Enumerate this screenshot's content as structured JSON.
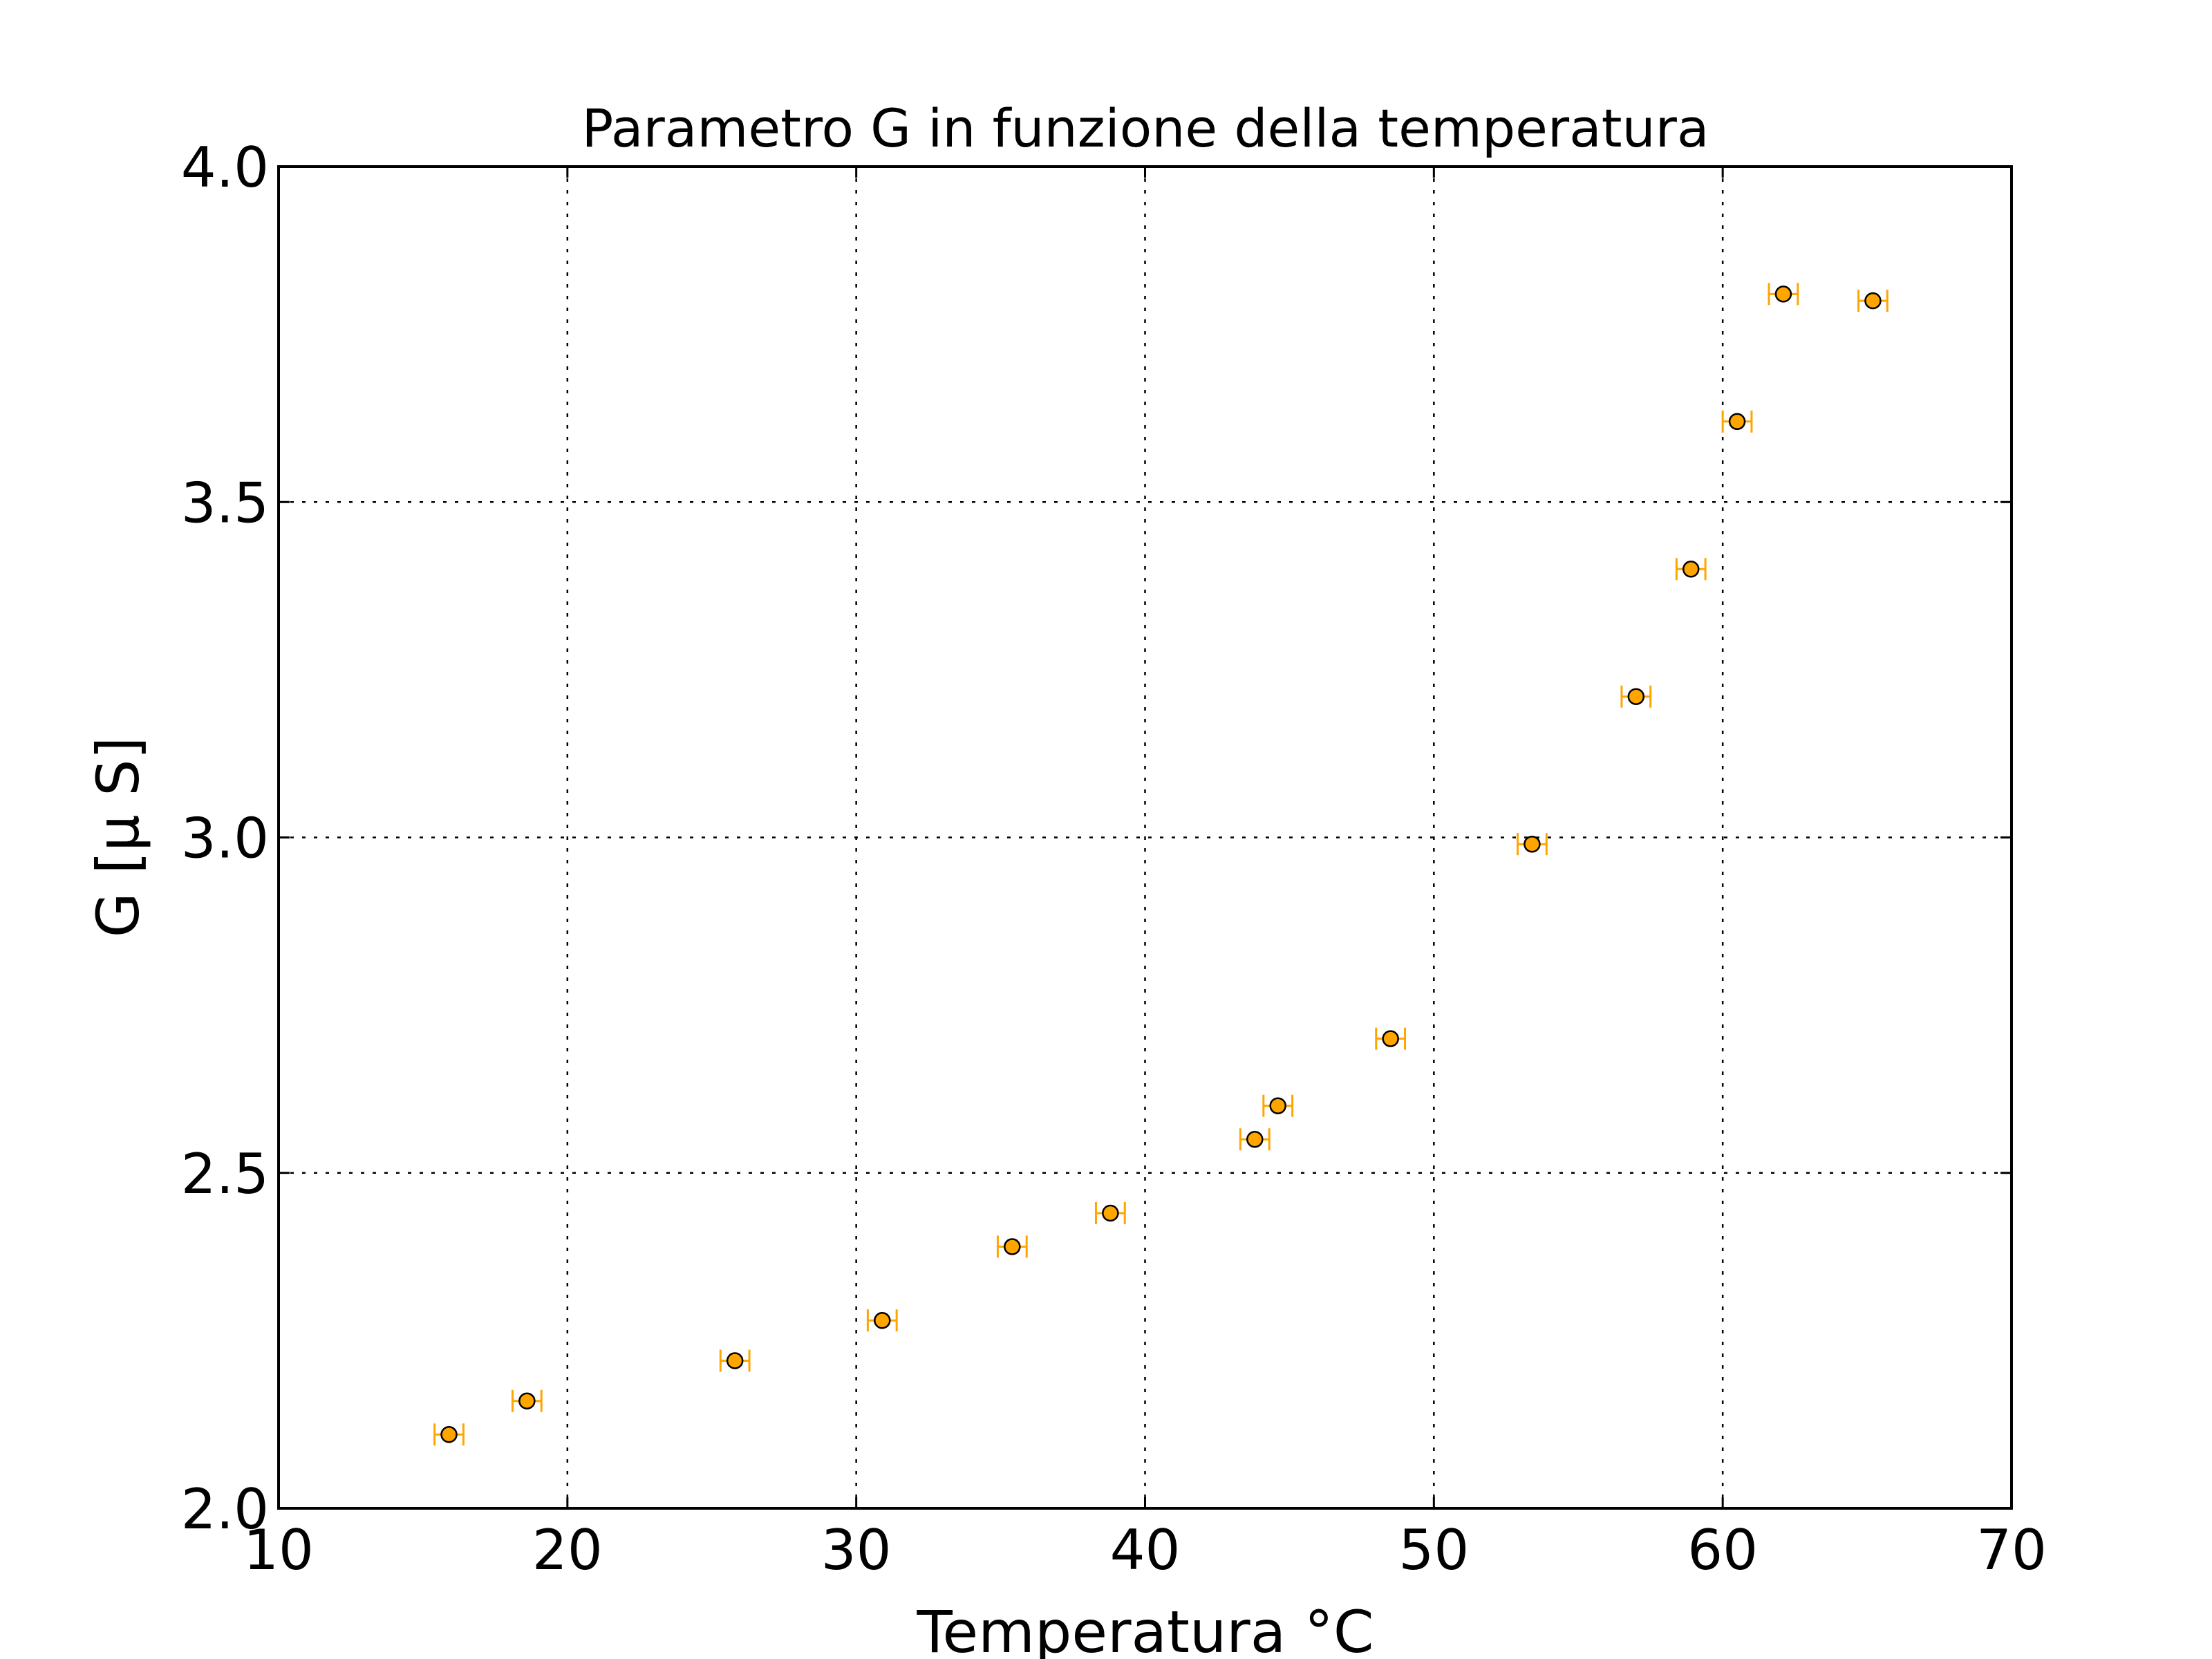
{
  "chart_data": {
    "type": "scatter",
    "title": "Parametro G in funzione della temperatura",
    "xlabel": "Temperatura °C",
    "ylabel": "G [μ S]",
    "xlim": [
      10,
      70
    ],
    "ylim": [
      2.0,
      4.0
    ],
    "x_ticks": [
      "10",
      "20",
      "30",
      "40",
      "50",
      "60",
      "70"
    ],
    "y_ticks": [
      "2.0",
      "2.5",
      "3.0",
      "3.5",
      "4.0"
    ],
    "grid": true,
    "marker_color": "#ffa500",
    "errorbar_color": "#ffa500",
    "series": [
      {
        "points": [
          {
            "x": 15.9,
            "y": 2.11,
            "xerr": 0.5
          },
          {
            "x": 18.6,
            "y": 2.16,
            "xerr": 0.5
          },
          {
            "x": 25.8,
            "y": 2.22,
            "xerr": 0.5
          },
          {
            "x": 30.9,
            "y": 2.28,
            "xerr": 0.5
          },
          {
            "x": 35.4,
            "y": 2.39,
            "xerr": 0.5
          },
          {
            "x": 38.8,
            "y": 2.44,
            "xerr": 0.5
          },
          {
            "x": 43.8,
            "y": 2.55,
            "xerr": 0.5
          },
          {
            "x": 44.6,
            "y": 2.6,
            "xerr": 0.5
          },
          {
            "x": 48.5,
            "y": 2.7,
            "xerr": 0.5
          },
          {
            "x": 53.4,
            "y": 2.99,
            "xerr": 0.5
          },
          {
            "x": 57.0,
            "y": 3.21,
            "xerr": 0.5
          },
          {
            "x": 58.9,
            "y": 3.4,
            "xerr": 0.5
          },
          {
            "x": 60.5,
            "y": 3.62,
            "xerr": 0.5
          },
          {
            "x": 62.1,
            "y": 3.81,
            "xerr": 0.5
          },
          {
            "x": 65.2,
            "y": 3.8,
            "xerr": 0.5
          }
        ]
      }
    ]
  }
}
